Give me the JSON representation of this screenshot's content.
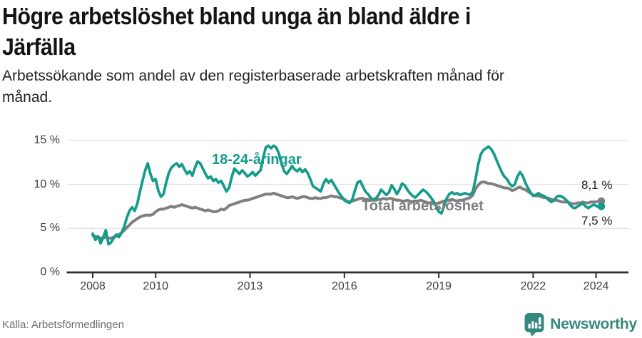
{
  "header": {
    "title_line1": "Högre arbetslöshet bland unga än bland äldre i",
    "title_line2": "Järfälla",
    "subtitle_line1": "Arbetssökande som andel av den registerbaserade arbetskraften månad för",
    "subtitle_line2": "månad."
  },
  "footer": {
    "source": "Källa: Arbetsförmedlingen",
    "brand_name": "Newsworthy",
    "brand_icon": "speech-bubble-bar-chart-icon"
  },
  "colors": {
    "youth_line": "#149b8a",
    "total_line": "#7f7f7f",
    "axis": "#3a3a3a",
    "gridline": "#e3e3e3",
    "brand_teal": "#35887d"
  },
  "chart_data": {
    "type": "line",
    "title": "Högre arbetslöshet bland unga än bland äldre i Järfälla",
    "subtitle": "Arbetssökande som andel av den registerbaserade arbetskraften månad för månad.",
    "xlabel": "",
    "ylabel": "",
    "grid": "horizontal",
    "legend_position": "inline-labels",
    "x_range": [
      2008,
      2024.25
    ],
    "ylim": [
      0,
      15
    ],
    "x_ticks": [
      "2008",
      "2010",
      "2013",
      "2016",
      "2019",
      "2022",
      "2024"
    ],
    "y_ticks": [
      "0 %",
      "5 %",
      "10 %",
      "15 %"
    ],
    "x_start_year": 2008,
    "points_per_year": 12,
    "series": [
      {
        "name": "18-24-åringar",
        "color": "#149b8a",
        "end_label": "7,5 %",
        "end_value": 7.5,
        "values": [
          4.4,
          3.7,
          4.1,
          3.3,
          4.0,
          4.8,
          3.2,
          3.4,
          3.9,
          4.3,
          4.0,
          4.5,
          5.2,
          6.2,
          7.0,
          7.4,
          7.0,
          7.8,
          9.2,
          10.4,
          11.6,
          12.4,
          11.2,
          10.4,
          10.6,
          9.3,
          8.6,
          8.9,
          10.2,
          11.3,
          11.9,
          12.2,
          12.4,
          12.0,
          12.3,
          11.7,
          11.2,
          11.5,
          11.0,
          11.9,
          12.6,
          12.4,
          11.8,
          11.2,
          10.7,
          10.9,
          10.4,
          10.6,
          10.2,
          10.4,
          9.8,
          9.2,
          9.6,
          10.8,
          11.8,
          11.5,
          11.2,
          11.6,
          11.3,
          10.9,
          11.1,
          11.4,
          11.0,
          11.3,
          11.6,
          13.0,
          14.2,
          14.4,
          14.1,
          14.4,
          14.2,
          13.5,
          12.4,
          11.5,
          11.2,
          11.6,
          12.1,
          11.7,
          11.5,
          11.8,
          11.4,
          11.7,
          11.3,
          10.6,
          9.8,
          9.6,
          9.4,
          9.2,
          10.1,
          10.6,
          10.2,
          10.5,
          10.0,
          9.5,
          9.0,
          8.6,
          8.2,
          8.0,
          7.9,
          8.3,
          9.3,
          10.2,
          10.4,
          9.8,
          9.2,
          8.9,
          8.5,
          8.3,
          8.4,
          8.8,
          9.4,
          9.1,
          8.8,
          9.1,
          9.9,
          9.5,
          8.9,
          9.4,
          10.1,
          9.9,
          9.4,
          9.0,
          8.7,
          8.5,
          8.8,
          9.1,
          9.4,
          9.2,
          8.9,
          8.5,
          8.1,
          7.5,
          6.9,
          6.7,
          7.5,
          8.4,
          8.9,
          9.1,
          8.9,
          9.0,
          8.8,
          8.9,
          9.0,
          8.9,
          8.8,
          9.2,
          10.6,
          12.2,
          13.4,
          13.9,
          14.1,
          14.3,
          14.0,
          13.5,
          12.8,
          12.1,
          11.4,
          10.9,
          10.6,
          10.1,
          9.8,
          10.0,
          10.9,
          11.4,
          11.0,
          10.2,
          9.6,
          9.1,
          8.7,
          8.8,
          9.0,
          8.8,
          8.7,
          8.5,
          8.2,
          8.0,
          8.2,
          8.6,
          8.7,
          8.6,
          8.4,
          8.1,
          7.7,
          7.4,
          7.3,
          7.5,
          7.7,
          7.8,
          7.5,
          7.3,
          7.5,
          7.7,
          7.6,
          7.4,
          7.5
        ]
      },
      {
        "name": "Total arbetslöshet",
        "color": "#7f7f7f",
        "end_label": "8,1 %",
        "end_value": 8.1,
        "values": [
          4.2,
          4.1,
          4.0,
          3.9,
          3.9,
          4.0,
          3.9,
          3.9,
          4.0,
          4.1,
          4.3,
          4.5,
          4.8,
          5.1,
          5.4,
          5.7,
          5.9,
          6.1,
          6.3,
          6.4,
          6.5,
          6.5,
          6.5,
          6.6,
          6.9,
          7.1,
          7.2,
          7.2,
          7.3,
          7.4,
          7.5,
          7.4,
          7.5,
          7.6,
          7.7,
          7.6,
          7.5,
          7.4,
          7.3,
          7.4,
          7.3,
          7.2,
          7.1,
          7.0,
          7.1,
          7.0,
          6.9,
          6.9,
          7.0,
          7.2,
          7.1,
          7.3,
          7.6,
          7.7,
          7.8,
          7.9,
          8.0,
          8.1,
          8.2,
          8.2,
          8.3,
          8.4,
          8.5,
          8.6,
          8.7,
          8.8,
          8.9,
          8.9,
          8.9,
          9.0,
          8.9,
          8.8,
          8.7,
          8.6,
          8.5,
          8.5,
          8.6,
          8.5,
          8.4,
          8.5,
          8.6,
          8.6,
          8.5,
          8.4,
          8.4,
          8.5,
          8.4,
          8.4,
          8.5,
          8.5,
          8.6,
          8.7,
          8.6,
          8.6,
          8.5,
          8.4,
          8.3,
          8.1,
          8.0,
          8.1,
          8.2,
          8.3,
          8.4,
          8.4,
          8.3,
          8.3,
          8.2,
          8.2,
          8.2,
          8.3,
          8.3,
          8.4,
          8.3,
          8.4,
          8.4,
          8.3,
          8.2,
          8.2,
          8.1,
          8.1,
          8.2,
          8.1,
          8.0,
          8.1,
          8.1,
          8.2,
          8.1,
          8.0,
          7.9,
          7.9,
          7.8,
          7.8,
          7.9,
          8.0,
          8.1,
          8.2,
          8.2,
          8.3,
          8.2,
          8.1,
          8.2,
          8.2,
          8.3,
          8.4,
          8.5,
          8.8,
          9.5,
          9.9,
          10.2,
          10.3,
          10.2,
          10.1,
          10.1,
          10.0,
          9.9,
          9.8,
          9.7,
          9.6,
          9.6,
          9.5,
          9.3,
          9.4,
          9.6,
          9.7,
          9.5,
          9.4,
          9.2,
          9.0,
          8.8,
          8.7,
          8.7,
          8.6,
          8.5,
          8.5,
          8.4,
          8.3,
          8.2,
          8.2,
          8.1,
          8.0,
          8.0,
          8.0,
          7.9,
          7.8,
          7.8,
          7.9,
          7.9,
          8.0,
          7.9,
          7.9,
          8.0,
          8.0,
          8.0,
          8.1,
          8.1
        ]
      }
    ]
  }
}
